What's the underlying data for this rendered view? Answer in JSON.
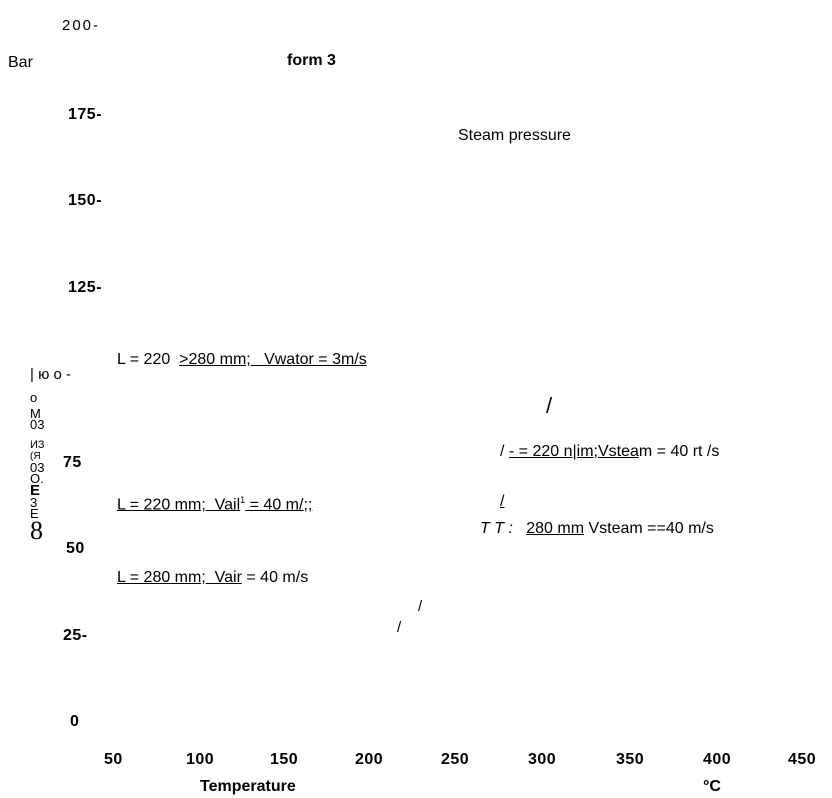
{
  "chart_data": {
    "type": "line",
    "title": "form 3",
    "xlabel": "Temperature",
    "xunit": "°C",
    "ylabel": "Bar",
    "xlim": [
      50,
      450
    ],
    "ylim": [
      0,
      200
    ],
    "x_ticks": [
      "50",
      "100",
      "150",
      "200",
      "250",
      "300",
      "350",
      "400",
      "450"
    ],
    "y_ticks": [
      "200-",
      "175-",
      "150-",
      "125-",
      "| ю о -",
      "75",
      "50",
      "25-",
      "0"
    ],
    "series": [
      {
        "name": "Steam pressure",
        "values": []
      },
      {
        "name": "L = 220 >280 mm; Vwator = 3m/s",
        "values": []
      },
      {
        "name": "L = 220 mm; Vail1 = 40 m/;;",
        "values": []
      },
      {
        "name": "L = 280 mm; Vair = 40 m/s",
        "values": []
      },
      {
        "name": "/ - = 220 n|im;Vsteam = 40 rt /s",
        "values": []
      },
      {
        "name": "T T : 280 mm Vsteam ==40 m/s",
        "values": []
      }
    ],
    "annotations": [
      "/",
      "/",
      "/",
      "/",
      "о",
      "М",
      "03",
      "ИЗ",
      "(Я",
      "03",
      "О.",
      "Е",
      "3",
      "Е",
      "8"
    ]
  },
  "labels": {
    "title": "form 3",
    "unit_y": "Bar",
    "steam": "Steam pressure",
    "water_a": "L = 220",
    "water_b": ">280 mm;",
    "water_c": "Vwator = 3m/s",
    "air220_a": "L = 220 mm;",
    "air220_b": "Vail",
    "air220_sup": "1",
    "air220_c": " = 40 m/;;",
    "air280_a": "L = 280 mm;",
    "air280_b": "Vair",
    "air280_c": " = 40 m/s",
    "steam220_a": "/ ",
    "steam220_b": "- = 220 n|im;Vstea",
    "steam220_c": "m = 40 rt /s",
    "steam280_a": "T T :",
    "steam280_b": "280 mm",
    "steam280_c": " Vsteam ==40 m/s",
    "slash1": "/",
    "slash2": "/",
    "slash3": "/",
    "slash4": "/",
    "xlabel": "Temperature",
    "xunit": "°C",
    "y_garble": [
      "о",
      "М",
      "03",
      "ИЗ",
      "(Я",
      "03",
      "О.",
      "Е",
      "3",
      "Е"
    ],
    "y_eight": "8"
  }
}
